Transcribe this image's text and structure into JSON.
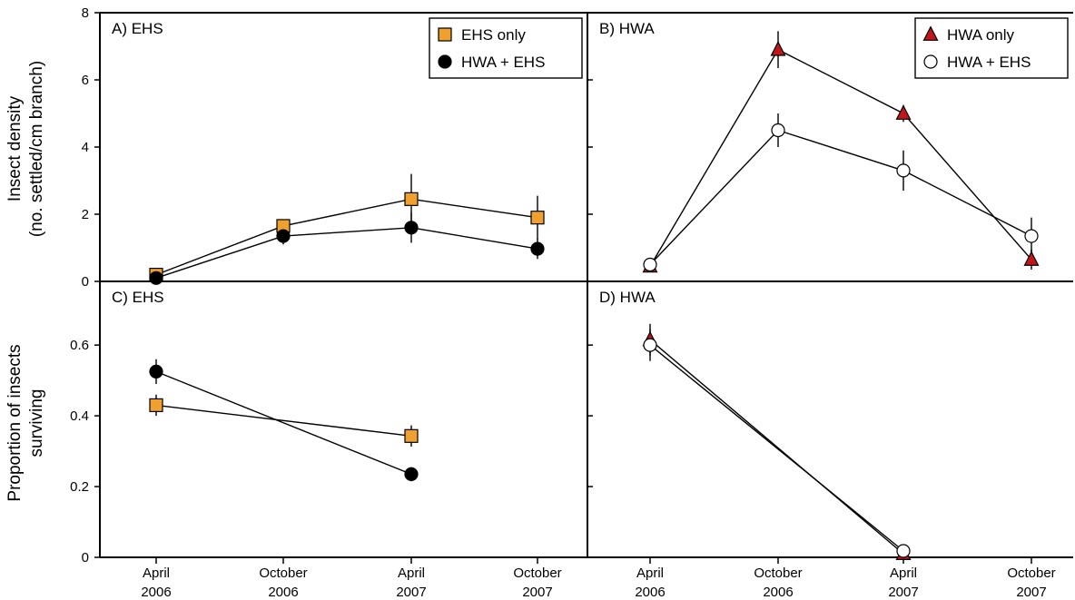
{
  "chart_data": {
    "type": "scatter",
    "ylabels": {
      "top": [
        "Insect density",
        "(no. settled/cm branch)"
      ],
      "bottom": [
        "Proportion of insects",
        "surviving"
      ]
    },
    "x_categories": [
      [
        "April",
        "2006"
      ],
      [
        "October",
        "2006"
      ],
      [
        "April",
        "2007"
      ],
      [
        "October",
        "2007"
      ]
    ],
    "colors": {
      "ehs_marker": "#f0a030",
      "hwa_marker": "#c0161c",
      "hwa_ehs_open": "#ffffff",
      "hwa_ehs_filled": "#000000"
    },
    "panels": [
      {
        "id": "A",
        "label": "A) EHS",
        "ylim": [
          0,
          8
        ],
        "yticks": [
          0,
          2,
          4,
          6,
          8
        ],
        "ytick_labels": [
          "0",
          "2",
          "4",
          "6",
          "8"
        ],
        "legend": {
          "placement": "top-right"
        },
        "series": [
          {
            "name": "EHS only",
            "marker": "square",
            "color": "#f0a030",
            "points": [
              {
                "x": 0,
                "y": 0.2,
                "err": 0.05
              },
              {
                "x": 1,
                "y": 1.65,
                "err": 0.2
              },
              {
                "x": 2,
                "y": 2.45,
                "err": 0.75
              },
              {
                "x": 3,
                "y": 1.9,
                "err": 0.65
              }
            ]
          },
          {
            "name": "HWA + EHS",
            "marker": "circle",
            "color": "#000000",
            "points": [
              {
                "x": 0,
                "y": 0.1,
                "err": 0.05
              },
              {
                "x": 1,
                "y": 1.35,
                "err": 0.25
              },
              {
                "x": 2,
                "y": 1.6,
                "err": 0.45
              },
              {
                "x": 3,
                "y": 0.97,
                "err": 0.3
              }
            ]
          }
        ]
      },
      {
        "id": "B",
        "label": "B) HWA",
        "ylim": [
          0,
          8
        ],
        "yticks": [
          0,
          2,
          4,
          6,
          8
        ],
        "ytick_labels": [],
        "legend": {
          "placement": "top-right"
        },
        "series": [
          {
            "name": "HWA only",
            "marker": "triangle",
            "color": "#c0161c",
            "points": [
              {
                "x": 0,
                "y": 0.45,
                "err": 0.05
              },
              {
                "x": 1,
                "y": 6.9,
                "err": 0.55
              },
              {
                "x": 2,
                "y": 5.0,
                "err": 0.25
              },
              {
                "x": 3,
                "y": 0.65,
                "err": 0.3
              }
            ]
          },
          {
            "name": "HWA + EHS",
            "marker": "circle",
            "color": "#ffffff",
            "points": [
              {
                "x": 0,
                "y": 0.5,
                "err": 0.05
              },
              {
                "x": 1,
                "y": 4.5,
                "err": 0.5
              },
              {
                "x": 2,
                "y": 3.3,
                "err": 0.6
              },
              {
                "x": 3,
                "y": 1.35,
                "err": 0.55
              }
            ]
          }
        ]
      },
      {
        "id": "C",
        "label": "C) EHS",
        "ylim": [
          0,
          0.78
        ],
        "yticks": [
          0,
          0.2,
          0.4,
          0.6
        ],
        "ytick_labels": [
          "0",
          "0.2",
          "0.4",
          "0.6"
        ],
        "series": [
          {
            "name": "EHS only",
            "marker": "square",
            "color": "#f0a030",
            "points": [
              {
                "x": 0,
                "y": 0.43,
                "err": 0.03
              },
              {
                "x": 2,
                "y": 0.343,
                "err": 0.03
              }
            ]
          },
          {
            "name": "HWA + EHS",
            "marker": "circle",
            "color": "#000000",
            "points": [
              {
                "x": 0,
                "y": 0.525,
                "err": 0.035
              },
              {
                "x": 2,
                "y": 0.235,
                "err": 0.02
              }
            ]
          }
        ]
      },
      {
        "id": "D",
        "label": "D) HWA",
        "ylim": [
          0,
          0.78
        ],
        "yticks": [
          0,
          0.2,
          0.4,
          0.6
        ],
        "ytick_labels": [],
        "series": [
          {
            "name": "HWA only",
            "marker": "triangle",
            "color": "#c0161c",
            "points": [
              {
                "x": 0,
                "y": 0.615,
                "err": 0.045
              },
              {
                "x": 2,
                "y": 0.01,
                "err": 0.0
              }
            ]
          },
          {
            "name": "HWA + EHS",
            "marker": "circle",
            "color": "#ffffff",
            "points": [
              {
                "x": 0,
                "y": 0.6,
                "err": 0.045
              },
              {
                "x": 2,
                "y": 0.018,
                "err": 0.01
              }
            ]
          }
        ]
      }
    ]
  }
}
